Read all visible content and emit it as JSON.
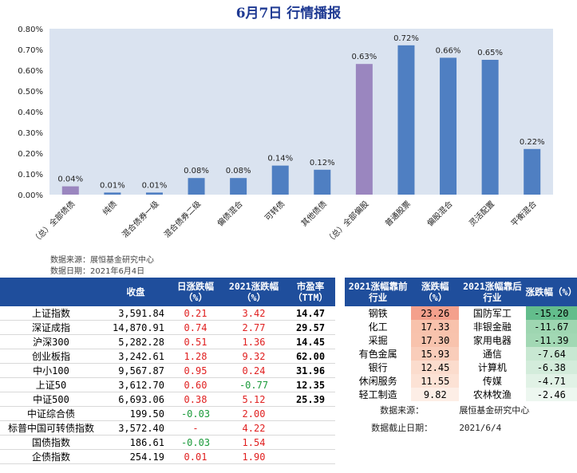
{
  "title": "6月7日  行情播报",
  "chart_data": {
    "type": "bar",
    "categories": [
      "（总）全部债债",
      "纯债",
      "混合债券一级",
      "混合债券二级",
      "偏债混合",
      "可转债",
      "其他债债",
      "（总）全部偏股",
      "普通股票",
      "偏股混合",
      "灵活配置",
      "平衡混合"
    ],
    "values": [
      0.04,
      0.01,
      0.01,
      0.08,
      0.08,
      0.14,
      0.12,
      0.63,
      0.72,
      0.66,
      0.65,
      0.22
    ],
    "value_labels": [
      "0.04%",
      "0.01%",
      "0.01%",
      "0.08%",
      "0.08%",
      "0.14%",
      "0.12%",
      "0.63%",
      "0.72%",
      "0.66%",
      "0.65%",
      "0.22%"
    ],
    "bar_colors": [
      "#9a86bf",
      "#4f7fc2",
      "#4f7fc2",
      "#4f7fc2",
      "#4f7fc2",
      "#4f7fc2",
      "#4f7fc2",
      "#9a86bf",
      "#4f7fc2",
      "#4f7fc2",
      "#4f7fc2",
      "#4f7fc2"
    ],
    "yticks": [
      "0.00%",
      "0.10%",
      "0.20%",
      "0.30%",
      "0.40%",
      "0.50%",
      "0.60%",
      "0.70%",
      "0.80%"
    ],
    "ylim": [
      0,
      0.8
    ],
    "plot_bg": "#dae3f0",
    "grid": false
  },
  "chart_source": {
    "line1": "数据来源：展恒基金研究中心",
    "line2": "数据日期：2021年6月4日"
  },
  "left_table": {
    "headers": [
      "",
      "收盘",
      "日涨跌幅\n（%）",
      "2021涨跌幅\n（%）",
      "市盈率\n（TTM）"
    ],
    "rows": [
      {
        "name": "上证指数",
        "close": "3,591.84",
        "day": "0.21",
        "ytd": "3.42",
        "pe": "14.47",
        "day_color": "red",
        "ytd_color": "red"
      },
      {
        "name": "深证成指",
        "close": "14,870.91",
        "day": "0.74",
        "ytd": "2.77",
        "pe": "29.57",
        "day_color": "red",
        "ytd_color": "red"
      },
      {
        "name": "沪深300",
        "close": "5,282.28",
        "day": "0.51",
        "ytd": "1.36",
        "pe": "14.45",
        "day_color": "red",
        "ytd_color": "red"
      },
      {
        "name": "创业板指",
        "close": "3,242.61",
        "day": "1.28",
        "ytd": "9.32",
        "pe": "62.00",
        "day_color": "red",
        "ytd_color": "red"
      },
      {
        "name": "中小100",
        "close": "9,567.87",
        "day": "0.95",
        "ytd": "0.24",
        "pe": "31.96",
        "day_color": "red",
        "ytd_color": "red"
      },
      {
        "name": "上证50",
        "close": "3,612.70",
        "day": "0.60",
        "ytd": "-0.77",
        "pe": "12.35",
        "day_color": "red",
        "ytd_color": "grn"
      },
      {
        "name": "中证500",
        "close": "6,693.06",
        "day": "0.38",
        "ytd": "5.12",
        "pe": "25.39",
        "day_color": "red",
        "ytd_color": "red"
      },
      {
        "name": "中证综合债",
        "close": "199.50",
        "day": "-0.03",
        "ytd": "2.00",
        "pe": "",
        "day_color": "grn",
        "ytd_color": "red"
      },
      {
        "name": "标普中国可转债指数",
        "close": "3,572.40",
        "day": "-",
        "ytd": "4.22",
        "pe": "",
        "day_color": "red",
        "ytd_color": "red"
      },
      {
        "name": "国债指数",
        "close": "186.61",
        "day": "-0.03",
        "ytd": "1.54",
        "pe": "",
        "day_color": "grn",
        "ytd_color": "red"
      },
      {
        "name": "企债指数",
        "close": "254.19",
        "day": "0.01",
        "ytd": "1.90",
        "pe": "",
        "day_color": "red",
        "ytd_color": "red"
      }
    ]
  },
  "right_table": {
    "headers": [
      "2021涨幅靠前\n行业",
      "涨跌幅\n（%）",
      "2021涨幅靠后\n行业",
      "涨跌幅（%）"
    ],
    "rows": [
      {
        "top": "钢铁",
        "top_val": "23.26",
        "top_bg": "#f4a08c",
        "bot": "国防军工",
        "bot_val": "-15.20",
        "bot_bg": "#63bd8c"
      },
      {
        "top": "化工",
        "top_val": "17.33",
        "top_bg": "#f8c2ac",
        "bot": "非银金融",
        "bot_val": "-11.67",
        "bot_bg": "#9ed6b1"
      },
      {
        "top": "采掘",
        "top_val": "17.30",
        "top_bg": "#f8c3ad",
        "bot": "家用电器",
        "bot_val": "-11.39",
        "bot_bg": "#a2d8b4"
      },
      {
        "top": "有色金属",
        "top_val": "15.93",
        "top_bg": "#f9cdba",
        "bot": "通信",
        "bot_val": "-7.64",
        "bot_bg": "#c8e8d2"
      },
      {
        "top": "银行",
        "top_val": "12.45",
        "top_bg": "#fbdccd",
        "bot": "计算机",
        "bot_val": "-6.38",
        "bot_bg": "#d3ecdb"
      },
      {
        "top": "休闲服务",
        "top_val": "11.55",
        "top_bg": "#fce2d5",
        "bot": "传媒",
        "bot_val": "-4.71",
        "bot_bg": "#e1f2e6"
      },
      {
        "top": "轻工制造",
        "top_val": "9.82",
        "top_bg": "#fdeee6",
        "bot": "农林牧渔",
        "bot_val": "-2.46",
        "bot_bg": "#edf7f0"
      }
    ],
    "source_label": "数据来源：",
    "source_value": "展恒基金研究中心",
    "date_label": "数据截止日期：",
    "date_value": "2021/6/4"
  }
}
